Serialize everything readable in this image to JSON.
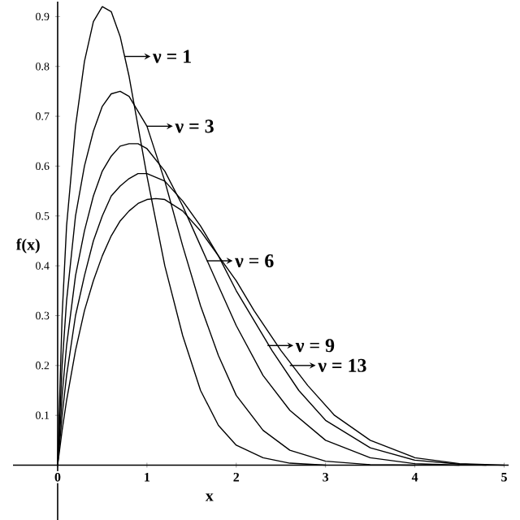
{
  "chart_data": {
    "type": "line",
    "xlabel": "x",
    "ylabel": "f(x)",
    "xlim": [
      -0.5,
      5.05
    ],
    "ylim": [
      -0.11,
      0.93
    ],
    "xticks": [
      0,
      1,
      2,
      3,
      4,
      5
    ],
    "yticks": [
      0.1,
      0.2,
      0.3,
      0.4,
      0.5,
      0.6,
      0.7,
      0.8,
      0.9
    ],
    "grid": false,
    "legend": false,
    "marker": "none",
    "line_style": "solid",
    "series": [
      {
        "color": "#000000",
        "x": [
          0,
          0.05,
          0.1,
          0.2,
          0.3,
          0.4,
          0.5,
          0.6,
          0.7,
          0.8,
          0.9,
          1.0,
          1.2,
          1.4,
          1.6,
          1.8,
          2.0,
          2.3,
          2.6,
          3.0
        ],
        "values": [
          0,
          0.3,
          0.48,
          0.68,
          0.81,
          0.89,
          0.92,
          0.91,
          0.86,
          0.78,
          0.68,
          0.58,
          0.4,
          0.26,
          0.15,
          0.08,
          0.04,
          0.015,
          0.004,
          0
        ]
      },
      {
        "color": "#000000",
        "x": [
          0,
          0.05,
          0.1,
          0.2,
          0.3,
          0.4,
          0.5,
          0.6,
          0.7,
          0.8,
          0.9,
          1.0,
          1.2,
          1.4,
          1.6,
          1.8,
          2.0,
          2.3,
          2.6,
          3.0,
          3.5,
          4.0
        ],
        "values": [
          0,
          0.2,
          0.33,
          0.5,
          0.6,
          0.67,
          0.72,
          0.745,
          0.75,
          0.74,
          0.71,
          0.68,
          0.57,
          0.44,
          0.32,
          0.22,
          0.14,
          0.07,
          0.03,
          0.008,
          0.001,
          0
        ]
      },
      {
        "color": "#000000",
        "x": [
          0,
          0.05,
          0.1,
          0.2,
          0.3,
          0.4,
          0.5,
          0.6,
          0.7,
          0.8,
          0.9,
          1.0,
          1.2,
          1.4,
          1.6,
          1.8,
          2.0,
          2.3,
          2.6,
          3.0,
          3.5,
          4.0,
          4.5
        ],
        "values": [
          0,
          0.14,
          0.24,
          0.38,
          0.47,
          0.54,
          0.59,
          0.62,
          0.64,
          0.645,
          0.645,
          0.635,
          0.59,
          0.52,
          0.44,
          0.36,
          0.28,
          0.18,
          0.11,
          0.05,
          0.015,
          0.003,
          0
        ]
      },
      {
        "color": "#000000",
        "x": [
          0,
          0.05,
          0.1,
          0.2,
          0.3,
          0.4,
          0.5,
          0.6,
          0.7,
          0.8,
          0.9,
          1.0,
          1.2,
          1.4,
          1.6,
          1.8,
          2.0,
          2.2,
          2.4,
          2.7,
          3.0,
          3.5,
          4.0,
          4.5,
          4.8
        ],
        "values": [
          0,
          0.1,
          0.18,
          0.3,
          0.38,
          0.45,
          0.5,
          0.54,
          0.56,
          0.575,
          0.585,
          0.585,
          0.57,
          0.53,
          0.48,
          0.42,
          0.35,
          0.29,
          0.23,
          0.15,
          0.09,
          0.035,
          0.01,
          0.002,
          0
        ]
      },
      {
        "color": "#000000",
        "x": [
          0,
          0.05,
          0.1,
          0.2,
          0.3,
          0.4,
          0.5,
          0.6,
          0.7,
          0.8,
          0.9,
          1.0,
          1.1,
          1.2,
          1.4,
          1.6,
          1.8,
          2.0,
          2.2,
          2.5,
          2.8,
          3.1,
          3.5,
          4.0,
          4.5,
          5.0
        ],
        "values": [
          0,
          0.07,
          0.13,
          0.23,
          0.31,
          0.37,
          0.42,
          0.46,
          0.49,
          0.51,
          0.525,
          0.533,
          0.535,
          0.533,
          0.51,
          0.47,
          0.42,
          0.37,
          0.31,
          0.23,
          0.16,
          0.1,
          0.05,
          0.015,
          0.003,
          0
        ]
      }
    ],
    "annotations": [
      {
        "text": "ν = 1",
        "x": 0.75,
        "y": 0.82
      },
      {
        "text": "ν = 3",
        "x": 1.0,
        "y": 0.68
      },
      {
        "text": "ν = 6",
        "x": 1.67,
        "y": 0.41
      },
      {
        "text": "ν = 9",
        "x": 2.35,
        "y": 0.24
      },
      {
        "text": "ν = 13",
        "x": 2.6,
        "y": 0.2
      }
    ]
  }
}
